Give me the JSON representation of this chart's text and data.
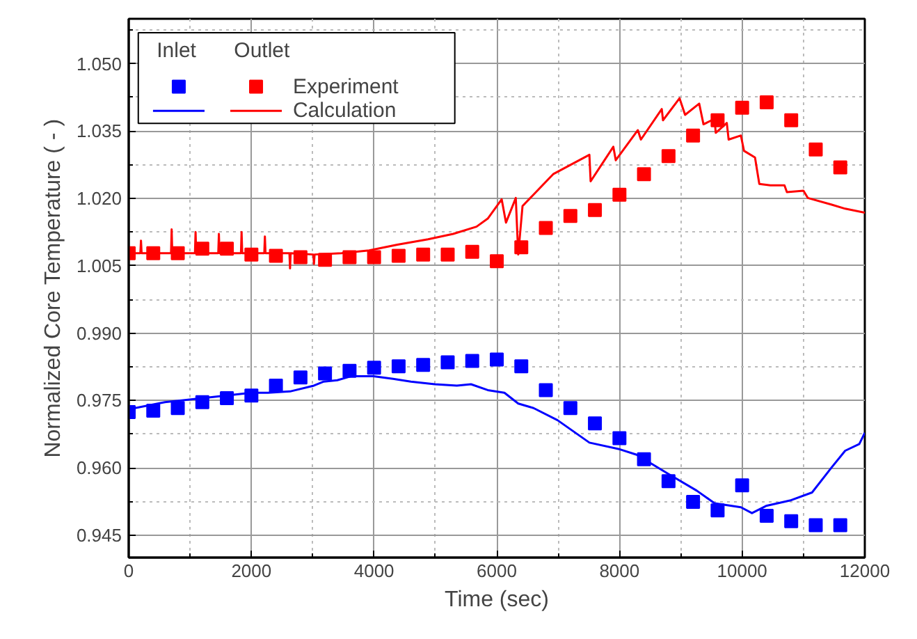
{
  "chart_data": {
    "type": "scatter",
    "xlabel": "Time (sec)",
    "ylabel": "Normalized Core Temperature ( - )",
    "xlim": [
      0,
      12000
    ],
    "xticks": [
      0,
      2000,
      4000,
      6000,
      8000,
      10000,
      12000
    ],
    "ylim": [
      0.94,
      1.06
    ],
    "yticks": [
      {
        "value": 0.945,
        "label": "0.945"
      },
      {
        "value": 0.96,
        "label": "0.960"
      },
      {
        "value": 0.975,
        "label": "0.975"
      },
      {
        "value": 0.99,
        "label": "0.990"
      },
      {
        "value": 1.005,
        "label": "1.005"
      },
      {
        "value": 1.02,
        "label": "1.020"
      },
      {
        "value": 1.035,
        "label": "1.035"
      },
      {
        "value": 1.05,
        "label": "1.050"
      }
    ],
    "grid": true,
    "legend": "top left",
    "legend_title": "Inlet",
    "annotations": [
      "Outlet"
    ],
    "series": [
      {
        "marker": "square",
        "color": "#0000ff",
        "x": [
          0,
          400,
          800,
          1200,
          1600,
          2000,
          2400,
          2800,
          3200,
          3600,
          4000,
          4400,
          4800,
          5200,
          5600,
          6000,
          6400,
          6800,
          7200,
          7600,
          8000,
          8400,
          8800,
          9200,
          9600,
          10000,
          10400,
          10800,
          11200,
          11600
        ],
        "values": [
          0.9724,
          0.9727,
          0.9733,
          0.9746,
          0.9755,
          0.9761,
          0.9783,
          0.9801,
          0.981,
          0.9816,
          0.9823,
          0.9826,
          0.9829,
          0.9835,
          0.9838,
          0.9841,
          0.9826,
          0.9773,
          0.9733,
          0.9699,
          0.9666,
          0.9619,
          0.957,
          0.9524,
          0.9505,
          0.9561,
          0.9493,
          0.9481,
          0.9472,
          0.9472
        ]
      },
      {
        "marker": "square",
        "name": "Experiment",
        "color": "#ff0000",
        "x": [
          0,
          400,
          800,
          1200,
          1600,
          2000,
          2400,
          2800,
          3200,
          3600,
          4000,
          4400,
          4800,
          5200,
          5600,
          6000,
          6400,
          6800,
          7200,
          7600,
          8000,
          8400,
          8800,
          9200,
          9600,
          10000,
          10400,
          10800,
          11200,
          11600
        ],
        "values": [
          1.0078,
          1.0078,
          1.0078,
          1.0088,
          1.0088,
          1.0075,
          1.0072,
          1.0069,
          1.0063,
          1.0069,
          1.0069,
          1.0072,
          1.0075,
          1.0075,
          1.0081,
          1.006,
          1.0091,
          1.0134,
          1.0161,
          1.0174,
          1.0208,
          1.0254,
          1.0294,
          1.034,
          1.0374,
          1.0402,
          1.0414,
          1.0374,
          1.0309,
          1.0269
        ]
      },
      {
        "type": "line",
        "line_style": "solid",
        "color": "#0000ff",
        "x": [
          0,
          590,
          1200,
          2000,
          2270,
          2630,
          3020,
          3180,
          3400,
          3630,
          3990,
          4310,
          4600,
          4990,
          5350,
          5580,
          5853,
          6125,
          6350,
          6600,
          6990,
          7510,
          8010,
          8280,
          8800,
          9260,
          9550,
          9980,
          10160,
          10390,
          10780,
          11140,
          11460,
          11680,
          11910,
          12000
        ],
        "values": [
          0.973,
          0.9746,
          0.9755,
          0.9767,
          0.9767,
          0.977,
          0.9783,
          0.9792,
          0.9795,
          0.9804,
          0.9804,
          0.9798,
          0.9792,
          0.9786,
          0.9783,
          0.9786,
          0.9773,
          0.9767,
          0.9743,
          0.9733,
          0.9706,
          0.9656,
          0.9641,
          0.9629,
          0.9586,
          0.9549,
          0.9521,
          0.9512,
          0.9499,
          0.9515,
          0.9527,
          0.9545,
          0.9601,
          0.9638,
          0.9653,
          0.9678
        ]
      },
      {
        "type": "line",
        "line_style": "solid",
        "name": "Calculation",
        "color": "#ff0000",
        "x": [
          0,
          190,
          200,
          210,
          690,
          700,
          710,
          1080,
          1090,
          1100,
          1460,
          1470,
          1480,
          1830,
          1840,
          1850,
          2210,
          2220,
          2230,
          2620,
          2630,
          2640,
          3010,
          3020,
          3030,
          3470,
          3920,
          4380,
          4880,
          5290,
          5670,
          5853,
          6080,
          6150,
          6310,
          6350,
          6420,
          6920,
          7510,
          7530,
          7900,
          7940,
          8300,
          8350,
          8690,
          8710,
          8980,
          9070,
          9300,
          9370,
          9550,
          9570,
          9750,
          9780,
          9980,
          10030,
          10210,
          10280,
          10460,
          10690,
          10730,
          11000,
          11070,
          11460,
          11680,
          12000
        ],
        "values": [
          1.0078,
          1.0078,
          1.0106,
          1.0078,
          1.0078,
          1.0131,
          1.0078,
          1.0078,
          1.0125,
          1.0078,
          1.0078,
          1.0121,
          1.0078,
          1.0078,
          1.0125,
          1.0078,
          1.0078,
          1.0115,
          1.0078,
          1.0078,
          1.0044,
          1.0078,
          1.0075,
          1.0054,
          1.0075,
          1.0078,
          1.0084,
          1.0097,
          1.0109,
          1.0121,
          1.0137,
          1.0155,
          1.0198,
          1.0146,
          1.0201,
          1.0075,
          1.0183,
          1.0254,
          1.0297,
          1.0238,
          1.0315,
          1.0285,
          1.0352,
          1.0331,
          1.0399,
          1.0374,
          1.0423,
          1.0386,
          1.0411,
          1.0365,
          1.0377,
          1.0346,
          1.0368,
          1.0331,
          1.034,
          1.0306,
          1.0291,
          1.0232,
          1.0229,
          1.0229,
          1.0214,
          1.0217,
          1.0201,
          1.0186,
          1.0177,
          1.0168
        ]
      }
    ]
  }
}
